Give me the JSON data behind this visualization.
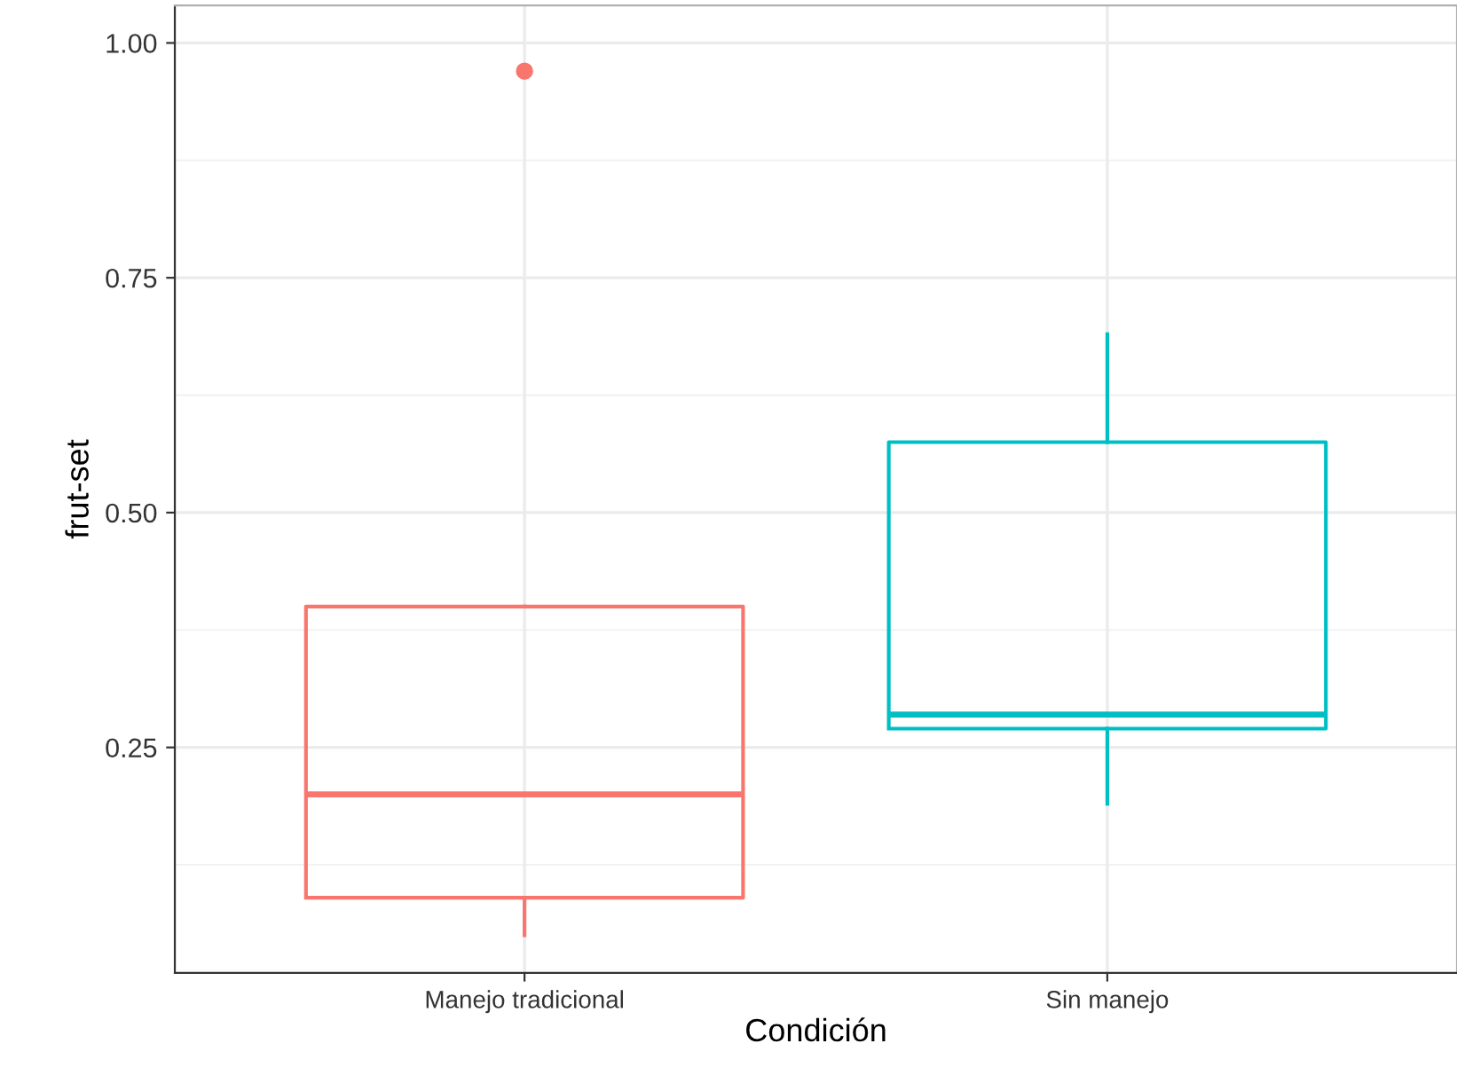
{
  "chart_data": {
    "type": "box",
    "xlabel": "Condición",
    "ylabel": "frut-set",
    "categories": [
      "Manejo tradicional",
      "Sin manejo"
    ],
    "series": [
      {
        "color": "#f8766d",
        "boxes": [
          {
            "low": 0.05,
            "q1": 0.09,
            "median": 0.2,
            "q3": 0.4,
            "high": 0.4,
            "outliers": [
              0.97
            ]
          },
          null
        ]
      },
      {
        "color": "#00bfc4",
        "boxes": [
          null,
          {
            "low": 0.19,
            "q1": 0.27,
            "median": 0.285,
            "q3": 0.575,
            "high": 0.69
          }
        ]
      }
    ],
    "ylim": [
      0.01,
      1.04
    ],
    "yticks": [
      {
        "value": 0.25,
        "label": "0.25"
      },
      {
        "value": 0.5,
        "label": "0.50"
      },
      {
        "value": 0.75,
        "label": "0.75"
      },
      {
        "value": 1.0,
        "label": "1.00"
      }
    ],
    "grid": true
  }
}
